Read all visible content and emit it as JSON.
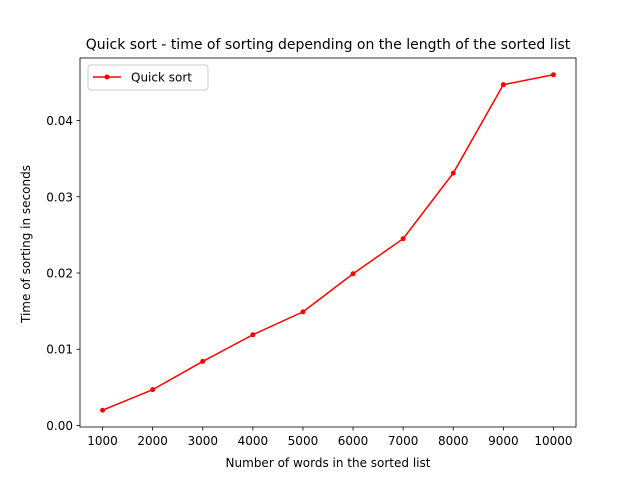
{
  "chart_data": {
    "type": "line",
    "title": "Quick sort - time of sorting depending on the length of the sorted list",
    "xlabel": "Number of words in the sorted list",
    "ylabel": "Time of sorting in seconds",
    "x": [
      1000,
      2000,
      3000,
      4000,
      5000,
      6000,
      7000,
      8000,
      9000,
      10000
    ],
    "x_ticks": [
      1000,
      2000,
      3000,
      4000,
      5000,
      6000,
      7000,
      8000,
      9000,
      10000
    ],
    "y_ticks": [
      0.0,
      0.01,
      0.02,
      0.03,
      0.04
    ],
    "y_tick_labels": [
      "0.00",
      "0.01",
      "0.02",
      "0.03",
      "0.04"
    ],
    "xlim": [
      550,
      10450
    ],
    "ylim": [
      -0.0002,
      0.0482
    ],
    "grid": false,
    "legend_position": "top-left",
    "series": [
      {
        "name": "Quick sort",
        "color": "#ff0000",
        "marker": "point",
        "values": [
          0.002,
          0.0047,
          0.0084,
          0.0119,
          0.0149,
          0.0199,
          0.0245,
          0.0331,
          0.0447,
          0.046
        ]
      }
    ]
  }
}
